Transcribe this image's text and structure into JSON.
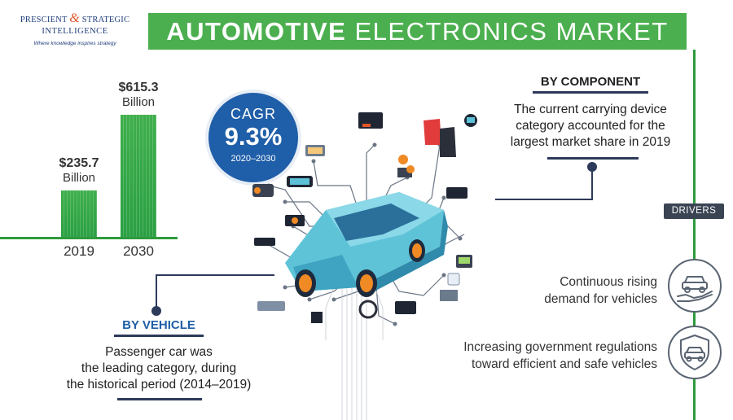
{
  "logo": {
    "line1_a": "PRESCIENT",
    "line1_amp": "&",
    "line1_b": "STRATEGIC",
    "line2": "INTELLIGENCE",
    "tagline": "Where knowledge inspires strategy"
  },
  "title": {
    "bold": "AUTOMOTIVE",
    "rest": "ELECTRONICS MARKET"
  },
  "market_size": {
    "bars": [
      {
        "year": "2019",
        "value_text": "$235.7",
        "unit": "Billion",
        "value": 235.7
      },
      {
        "year": "2030",
        "value_text": "$615.3",
        "unit": "Billion",
        "value": 615.3
      }
    ]
  },
  "cagr": {
    "label": "CAGR",
    "value": "9.3%",
    "period": "2020–2030"
  },
  "by_component": {
    "heading": "BY COMPONENT",
    "text_lines": [
      "The current carrying device",
      "category accounted for the",
      "largest market share in 2019"
    ]
  },
  "by_vehicle": {
    "heading": "BY VEHICLE",
    "text_lines": [
      "Passenger car was",
      "the leading category, during",
      "the historical period (2014–2019)"
    ]
  },
  "drivers": {
    "badge": "DRIVERS",
    "items": [
      {
        "lines": [
          "Continuous rising",
          "demand for vehicles"
        ],
        "icon": "car-in-hand-icon"
      },
      {
        "lines": [
          "Increasing government regulations",
          "toward efficient and safe vehicles"
        ],
        "icon": "car-shield-icon"
      }
    ]
  },
  "colors": {
    "green": "#4caf4f",
    "dark_green": "#2e9a3c",
    "navy": "#2d3a5a",
    "blue": "#1f5ea8",
    "orange": "#e2542a"
  }
}
